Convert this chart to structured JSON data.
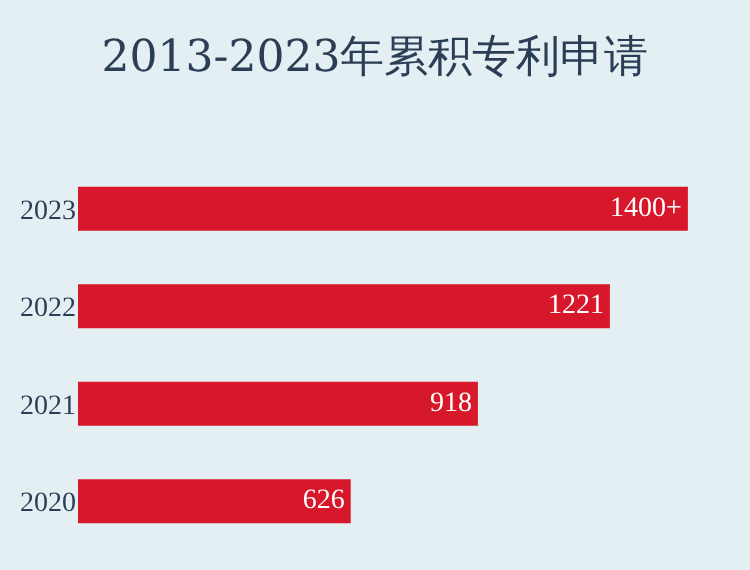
{
  "chart_data": {
    "type": "bar",
    "orientation": "horizontal",
    "title": "2013-2023年累积专利申请",
    "categories": [
      "2023",
      "2022",
      "2021",
      "2020"
    ],
    "values": [
      1400,
      1221,
      918,
      626
    ],
    "value_labels": [
      "1400+",
      "1221",
      "918",
      "626"
    ],
    "color": "#d7182a",
    "grid": false,
    "legend": false
  }
}
